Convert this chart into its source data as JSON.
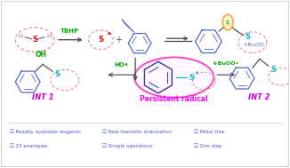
{
  "bg_color": "#ffffff",
  "border_color": "#c8d0d8",
  "features": [
    "Readily available reagents",
    "New theoretic elaboration",
    "Metal free",
    "25 examples",
    "Simple operations",
    "One step"
  ],
  "feature_color": "#5555cc",
  "tbhp_label": "TBHP",
  "green_color": "#00aa00",
  "ho_label": "HO•",
  "tbuoo_label": "t-BuOO•",
  "tbuoo_top_label": "t-BuOO",
  "int1_label": "INT 1",
  "int2_label": "INT 2",
  "int_label_color": "#dd00dd",
  "persistent_radical_label": "Persistent radical",
  "persistent_radical_color": "#ff00ff",
  "arrow_color": "#444444",
  "radical_ellipse_color": "#ff44cc",
  "s_color": "#dd0000",
  "s_color2": "#00cccc",
  "benzene_color": "#5566cc",
  "ring_color": "#ee8899",
  "oh_color": "#00aa00",
  "checkbox_symbol": "☑"
}
